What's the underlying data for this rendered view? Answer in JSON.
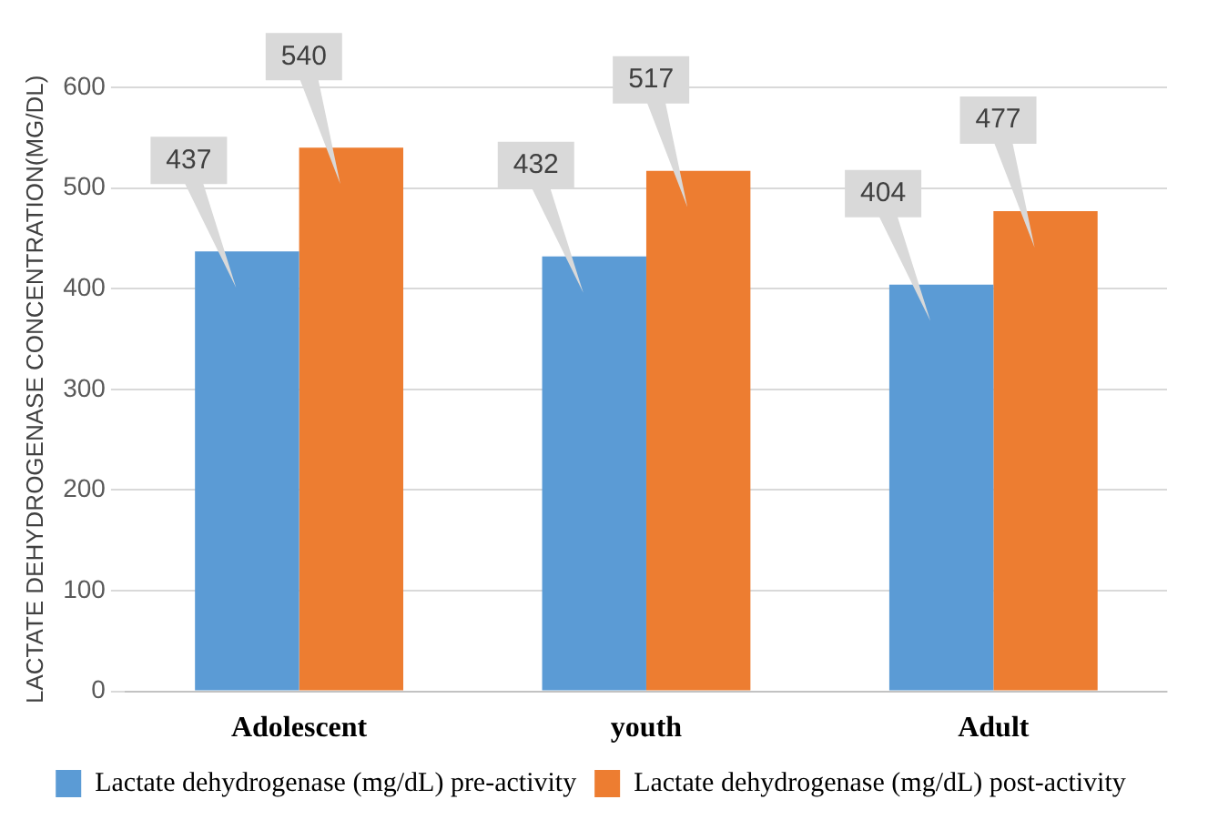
{
  "chart_data": {
    "type": "bar",
    "ylabel": "LACTATE DEHYDROGENASE CONCENTRATION(MG/DL)",
    "categories": [
      "Adolescent",
      "youth",
      "Adult"
    ],
    "series": [
      {
        "name": "Lactate dehydrogenase (mg/dL) pre-activity",
        "color": "#5b9bd5",
        "values": [
          437,
          432,
          404
        ]
      },
      {
        "name": "Lactate dehydrogenase (mg/dL) post-activity",
        "color": "#ed7d31",
        "values": [
          540,
          517,
          477
        ]
      }
    ],
    "ylim": [
      0,
      600
    ],
    "yticks": [
      0,
      100,
      200,
      300,
      400,
      500,
      600
    ],
    "grid": "y",
    "legend": "bottom",
    "data_labels": true
  }
}
